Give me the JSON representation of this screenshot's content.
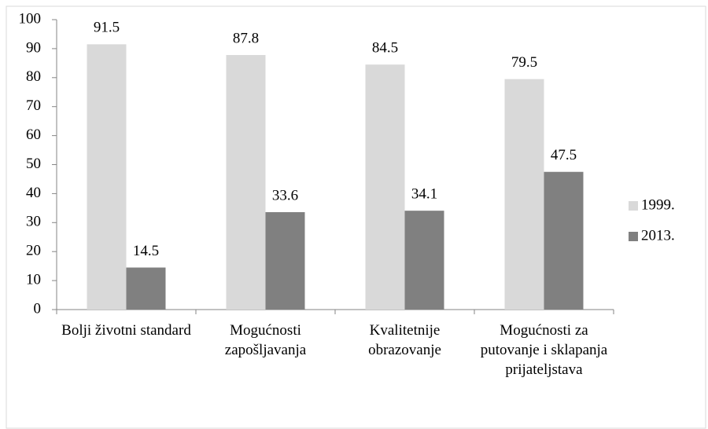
{
  "chart_data": {
    "type": "bar",
    "categories": [
      "Bolji životni standard",
      "Mogućnosti zapošljavanja",
      "Kvalitetnije obrazovanje",
      "Mogućnosti za putovanje i sklapanja prijateljstava"
    ],
    "series": [
      {
        "name": "1999.",
        "color": "#d9d9d9",
        "values": [
          91.5,
          87.8,
          84.5,
          79.5
        ]
      },
      {
        "name": "2013.",
        "color": "#808080",
        "values": [
          14.5,
          33.6,
          34.1,
          47.5
        ]
      }
    ],
    "ylim": [
      0,
      100
    ],
    "yticks": [
      0,
      10,
      20,
      30,
      40,
      50,
      60,
      70,
      80,
      90,
      100
    ],
    "legend": "right"
  }
}
